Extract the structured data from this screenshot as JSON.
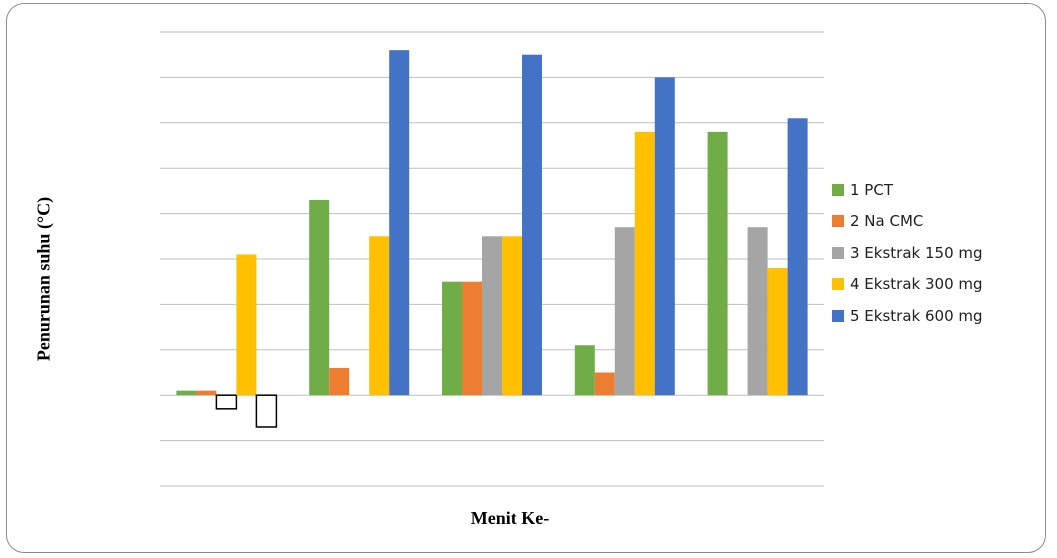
{
  "chart_data": {
    "type": "bar",
    "title": "",
    "xlabel": "Menit Ke-",
    "ylabel": "Penurunan suhu (°C)",
    "categories": [
      "",
      "",
      "",
      "",
      ""
    ],
    "ylim": [
      -0.2,
      0.8
    ],
    "grid_step": 0.1,
    "grid": true,
    "legend_position": "right",
    "series": [
      {
        "name": "1 PCT",
        "color": "#70AD47",
        "values": [
          0.01,
          0.43,
          0.25,
          0.11,
          0.58
        ]
      },
      {
        "name": "2 Na CMC",
        "color": "#ED7D31",
        "values": [
          0.01,
          0.06,
          0.25,
          0.05,
          0
        ]
      },
      {
        "name": "3 Ekstrak 150 mg",
        "color": "#A5A5A5",
        "values": [
          -0.03,
          0,
          0.35,
          0.37,
          0.37
        ]
      },
      {
        "name": "4 Ekstrak 300 mg",
        "color": "#FFC000",
        "values": [
          0.31,
          0.35,
          0.35,
          0.58,
          0.28
        ]
      },
      {
        "name": "5 Ekstrak 600 mg",
        "color": "#4472C4",
        "values": [
          -0.07,
          0.76,
          0.75,
          0.7,
          0.61
        ]
      }
    ]
  }
}
